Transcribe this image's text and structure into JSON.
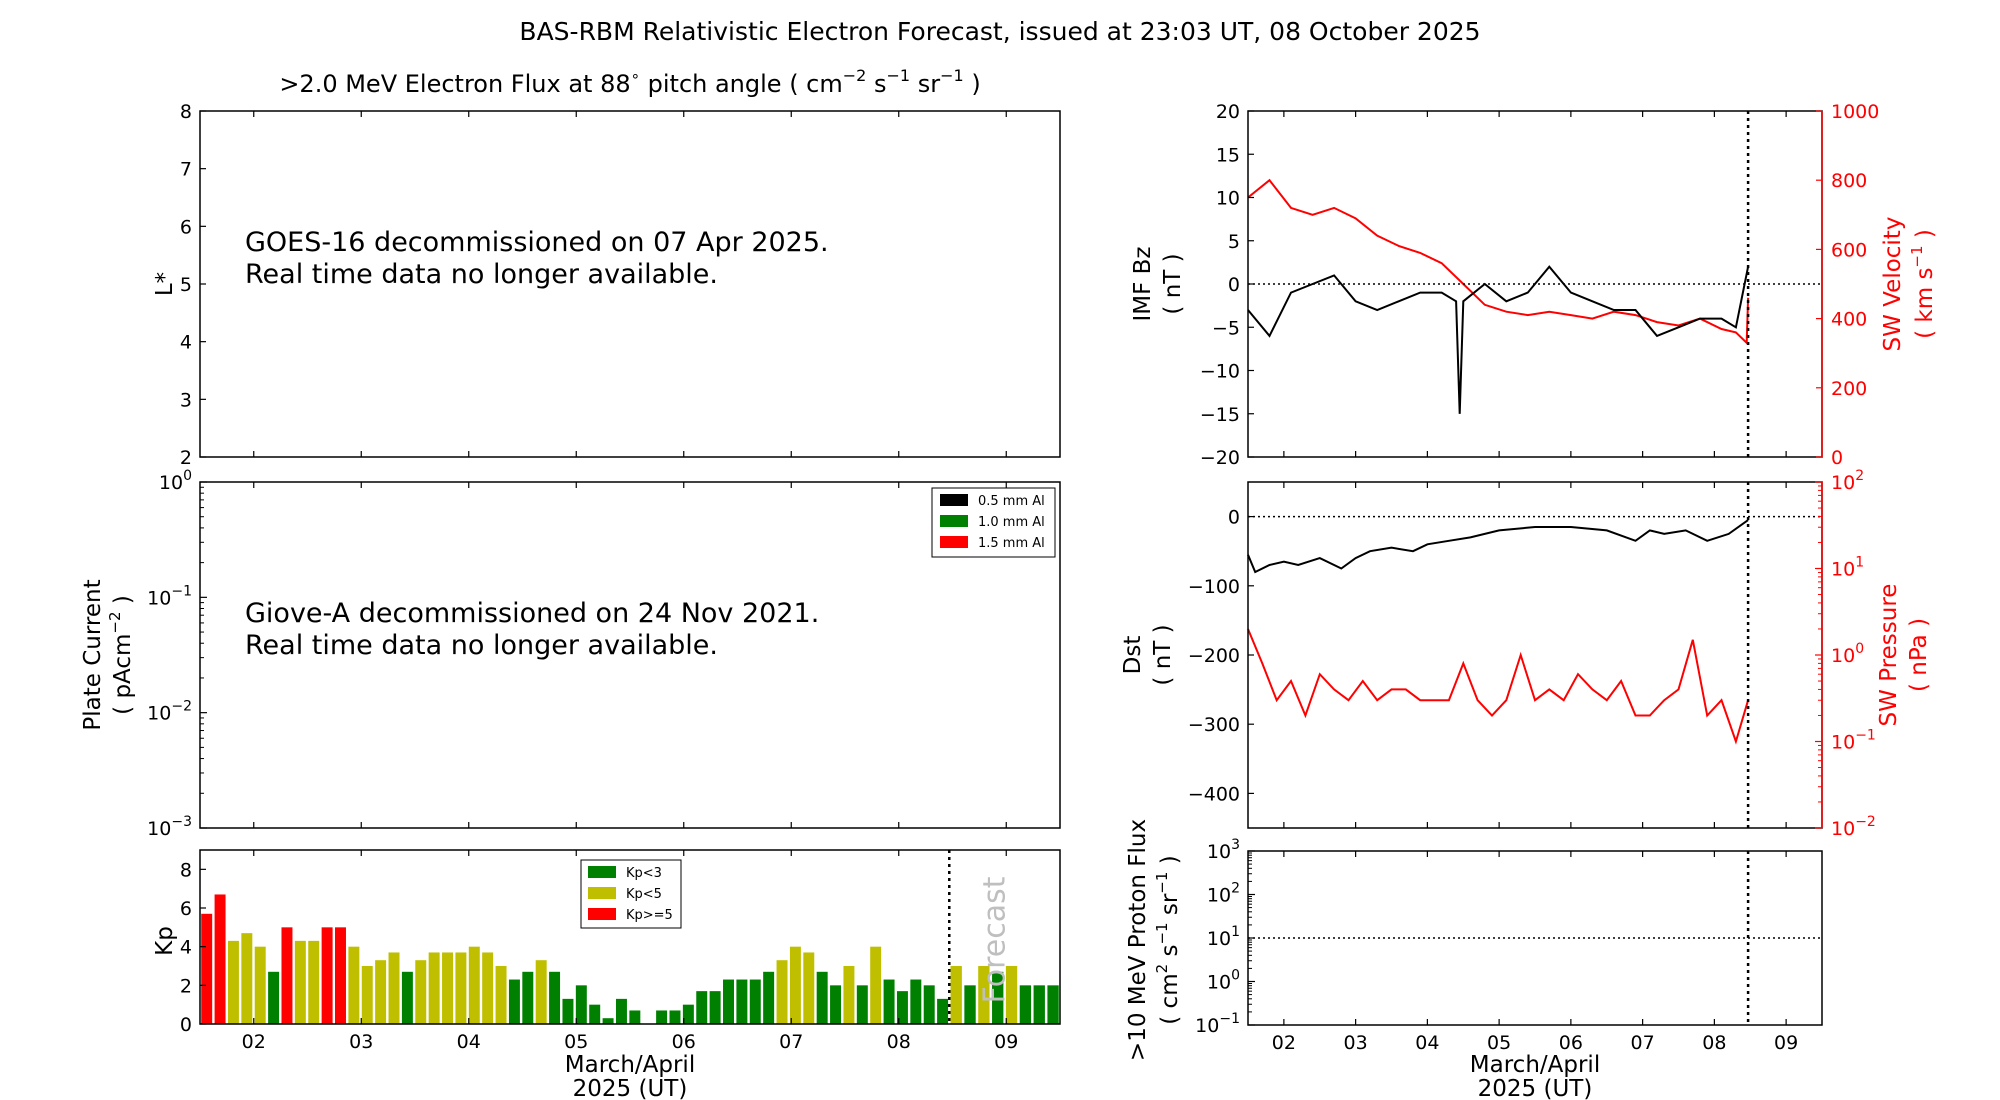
{
  "title": "BAS-RBM Relativistic Electron Forecast, issued at 23:03 UT, 08 October 2025",
  "colors": {
    "red": "#ff0000",
    "green": "#008000",
    "olive": "#bfbf00",
    "black": "#000000",
    "forecast_text": "#bfbfbf"
  },
  "chart_data": [
    {
      "id": "electron-flux",
      "type": "heatmap",
      "title_parts": {
        "pre": ">2.0 MeV Electron Flux at 88",
        "deg": "∘",
        "mid": " pitch angle ( cm",
        "e1": "−2",
        "s": " s",
        "e2": "−1",
        "sr": " sr",
        "e3": "−1",
        "post": " )"
      },
      "ylabel": "L*",
      "ylim": [
        2,
        8
      ],
      "yticks": [
        "2",
        "3",
        "4",
        "5",
        "6",
        "7",
        "8"
      ],
      "message": [
        "GOES-16 decommissioned on 07 Apr 2025.",
        "Real time data no longer available."
      ]
    },
    {
      "id": "plate-current",
      "type": "line",
      "ylabel": [
        "Plate Current",
        "( pAcm",
        "−2",
        " )"
      ],
      "yscale": "log",
      "ylim": [
        0.001,
        1
      ],
      "yticks": [
        {
          "b": "10",
          "e": "0"
        },
        {
          "b": "10",
          "e": "−1"
        },
        {
          "b": "10",
          "e": "−2"
        },
        {
          "b": "10",
          "e": "−3"
        }
      ],
      "legend": [
        "0.5 mm Al",
        "1.0 mm Al",
        "1.5 mm Al"
      ],
      "legend_placement": "top-right",
      "message": [
        "Giove-A decommissioned on 24 Nov 2021.",
        "Real time data no longer available."
      ]
    },
    {
      "id": "kp",
      "type": "bar",
      "ylabel": "Kp",
      "ylim": [
        0,
        9
      ],
      "yticks": [
        "0",
        "2",
        "4",
        "6",
        "8"
      ],
      "xlim": [
        1.5,
        9.5
      ],
      "xticks": [
        "02",
        "03",
        "04",
        "05",
        "06",
        "07",
        "08",
        "09"
      ],
      "xlabel": [
        "March/April",
        "2025 (UT)"
      ],
      "forecast_at": 8.47,
      "forecast_label": "Forecast",
      "legend": [
        "Kp<3",
        "Kp<5",
        "Kp>=5"
      ],
      "legend_placement": "top-center",
      "values": [
        5.7,
        6.7,
        4.3,
        4.7,
        4.0,
        2.7,
        5.0,
        4.3,
        4.3,
        5.0,
        5.0,
        4.0,
        3.0,
        3.3,
        3.7,
        2.7,
        3.3,
        3.7,
        3.7,
        3.7,
        4.0,
        3.7,
        3.0,
        2.3,
        2.7,
        3.3,
        2.7,
        1.3,
        2.0,
        1.0,
        0.3,
        1.3,
        0.7,
        0.0,
        0.7,
        0.7,
        1.0,
        1.7,
        1.7,
        2.3,
        2.3,
        2.3,
        2.7,
        3.3,
        4.0,
        3.7,
        2.7,
        2.0,
        3.0,
        2.0,
        4.0,
        2.3,
        1.7,
        2.3,
        2.0,
        1.3
      ],
      "forecast_values": [
        3.0,
        2.0,
        3.0,
        2.7,
        3.0,
        2.0,
        2.0,
        2.0
      ]
    },
    {
      "id": "imf-sw-velocity",
      "type": "line",
      "ylabel": [
        "IMF Bz",
        "( nT )"
      ],
      "ylim": [
        -20,
        20
      ],
      "yticks": [
        "−20",
        "−15",
        "−10",
        "−5",
        "0",
        "5",
        "10",
        "15",
        "20"
      ],
      "y2label": [
        "SW Velocity",
        "( km s",
        "−1",
        " )"
      ],
      "y2lim": [
        0,
        1000
      ],
      "y2ticks": [
        "0",
        "200",
        "400",
        "600",
        "800",
        "1000"
      ],
      "xlim": [
        1.5,
        9.5
      ],
      "now_marker": 8.47,
      "zero_line": 0,
      "series": [
        {
          "name": "",
          "color": "#000000",
          "x": [
            1.5,
            1.8,
            2.1,
            2.4,
            2.7,
            3.0,
            3.3,
            3.6,
            3.9,
            4.2,
            4.4,
            4.45,
            4.5,
            4.8,
            5.1,
            5.4,
            5.7,
            6.0,
            6.3,
            6.6,
            6.9,
            7.2,
            7.5,
            7.8,
            8.1,
            8.3,
            8.47
          ],
          "y": [
            -3,
            -6,
            -1,
            0,
            1,
            -2,
            -3,
            -2,
            -1,
            -1,
            -2,
            -15,
            -2,
            0,
            -2,
            -1,
            2,
            -1,
            -2,
            -3,
            -3,
            -6,
            -5,
            -4,
            -4,
            -5,
            2
          ]
        },
        {
          "name": "",
          "color": "#ff0000",
          "x": [
            1.5,
            1.8,
            2.1,
            2.4,
            2.7,
            3.0,
            3.3,
            3.6,
            3.9,
            4.2,
            4.5,
            4.8,
            5.1,
            5.4,
            5.7,
            6.0,
            6.3,
            6.6,
            6.9,
            7.2,
            7.5,
            7.8,
            8.1,
            8.3,
            8.45,
            8.47
          ],
          "y": [
            750,
            800,
            720,
            700,
            720,
            690,
            640,
            610,
            590,
            560,
            500,
            440,
            420,
            410,
            420,
            410,
            400,
            420,
            410,
            390,
            380,
            400,
            370,
            360,
            330,
            460
          ]
        }
      ]
    },
    {
      "id": "dst-sw-pressure",
      "type": "line",
      "ylabel": [
        "Dst",
        "( nT )"
      ],
      "ylim": [
        -450,
        50
      ],
      "yticks": [
        "−400",
        "−300",
        "−200",
        "−100",
        "0"
      ],
      "y2label": [
        "SW Pressure",
        "( nPa )"
      ],
      "y2scale": "log",
      "y2lim": [
        0.01,
        100
      ],
      "y2ticks": [
        {
          "b": "10",
          "e": "−2"
        },
        {
          "b": "10",
          "e": "−1"
        },
        {
          "b": "10",
          "e": "0"
        },
        {
          "b": "10",
          "e": "1"
        },
        {
          "b": "10",
          "e": "2"
        }
      ],
      "xlim": [
        1.5,
        9.5
      ],
      "now_marker": 8.47,
      "zero_line": 0,
      "series": [
        {
          "name": "",
          "color": "#000000",
          "x": [
            1.5,
            1.6,
            1.8,
            2.0,
            2.2,
            2.5,
            2.8,
            3.0,
            3.2,
            3.5,
            3.8,
            4.0,
            4.3,
            4.6,
            5.0,
            5.5,
            6.0,
            6.5,
            6.9,
            7.1,
            7.3,
            7.6,
            7.9,
            8.2,
            8.47
          ],
          "y": [
            -55,
            -80,
            -70,
            -65,
            -70,
            -60,
            -75,
            -60,
            -50,
            -45,
            -50,
            -40,
            -35,
            -30,
            -20,
            -15,
            -15,
            -20,
            -35,
            -20,
            -25,
            -20,
            -35,
            -25,
            -5
          ]
        },
        {
          "name": "",
          "color": "#ff0000",
          "x": [
            1.5,
            1.7,
            1.9,
            2.1,
            2.3,
            2.5,
            2.7,
            2.9,
            3.1,
            3.3,
            3.5,
            3.7,
            3.9,
            4.1,
            4.3,
            4.5,
            4.7,
            4.9,
            5.1,
            5.3,
            5.5,
            5.7,
            5.9,
            6.1,
            6.3,
            6.5,
            6.7,
            6.9,
            7.1,
            7.3,
            7.5,
            7.7,
            7.9,
            8.1,
            8.3,
            8.47
          ],
          "y": [
            2,
            0.8,
            0.3,
            0.5,
            0.2,
            0.6,
            0.4,
            0.3,
            0.5,
            0.3,
            0.4,
            0.4,
            0.3,
            0.3,
            0.3,
            0.8,
            0.3,
            0.2,
            0.3,
            1.0,
            0.3,
            0.4,
            0.3,
            0.6,
            0.4,
            0.3,
            0.5,
            0.2,
            0.2,
            0.3,
            0.4,
            1.5,
            0.2,
            0.3,
            0.1,
            0.3
          ]
        }
      ]
    },
    {
      "id": "proton-flux",
      "type": "line",
      "ylabel": [
        ">10 MeV Proton Flux",
        "( cm",
        "2",
        " s",
        "−1",
        " sr",
        "−1",
        " )"
      ],
      "yscale": "log",
      "ylim": [
        0.1,
        1000
      ],
      "yticks": [
        {
          "b": "10",
          "e": "−1"
        },
        {
          "b": "10",
          "e": "0"
        },
        {
          "b": "10",
          "e": "1"
        },
        {
          "b": "10",
          "e": "2"
        },
        {
          "b": "10",
          "e": "3"
        }
      ],
      "threshold": 10,
      "xlim": [
        1.5,
        9.5
      ],
      "xticks": [
        "02",
        "03",
        "04",
        "05",
        "06",
        "07",
        "08",
        "09"
      ],
      "xlabel": [
        "March/April",
        "2025 (UT)"
      ],
      "now_marker": 8.47
    }
  ]
}
